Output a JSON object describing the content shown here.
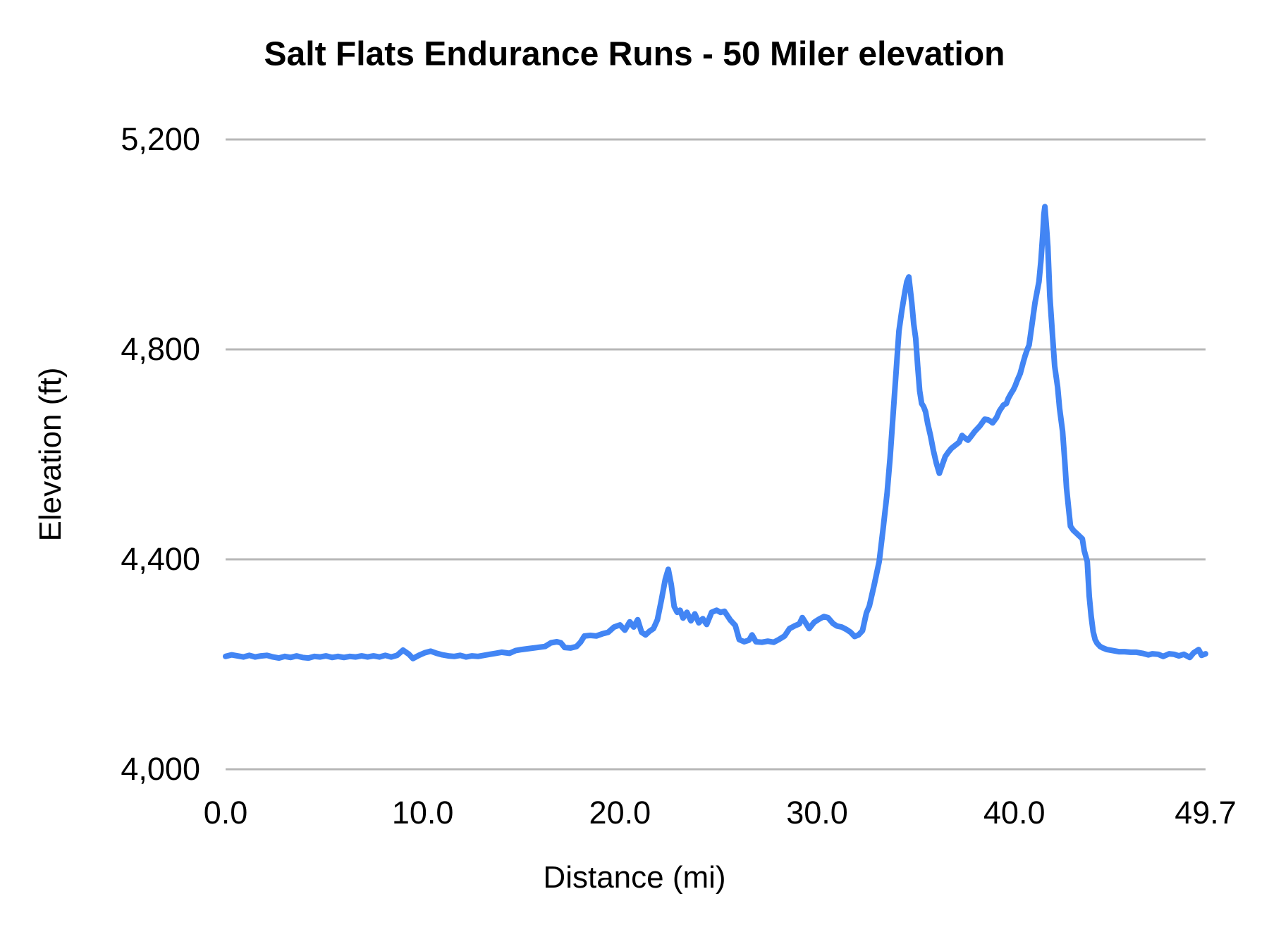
{
  "chart_data": {
    "type": "line",
    "title": "Salt Flats Endurance Runs - 50 Miler elevation",
    "xlabel": "Distance (mi)",
    "ylabel": "Elevation (ft)",
    "xlim": [
      0,
      49.7
    ],
    "ylim": [
      4000,
      5200
    ],
    "grid": "horizontal-only",
    "legend_position": "none",
    "line_color": "#4285f4",
    "gridline_color": "#b7b7b7",
    "text_color": "#000000",
    "x_ticks": [
      {
        "value": 0,
        "label": "0.0"
      },
      {
        "value": 10,
        "label": "10.0"
      },
      {
        "value": 20,
        "label": "20.0"
      },
      {
        "value": 30,
        "label": "30.0"
      },
      {
        "value": 40,
        "label": "40.0"
      },
      {
        "value": 49.7,
        "label": "49.7"
      }
    ],
    "y_ticks": [
      {
        "value": 4000,
        "label": "4,000"
      },
      {
        "value": 4400,
        "label": "4,400"
      },
      {
        "value": 4800,
        "label": "4,800"
      },
      {
        "value": 5200,
        "label": "5,200"
      }
    ],
    "series": [
      {
        "name": "Elevation",
        "points": [
          [
            0.0,
            4215
          ],
          [
            0.3,
            4218
          ],
          [
            0.6,
            4216
          ],
          [
            0.9,
            4214
          ],
          [
            1.2,
            4217
          ],
          [
            1.5,
            4214
          ],
          [
            1.8,
            4216
          ],
          [
            2.1,
            4217
          ],
          [
            2.4,
            4214
          ],
          [
            2.7,
            4212
          ],
          [
            3.0,
            4215
          ],
          [
            3.3,
            4213
          ],
          [
            3.6,
            4216
          ],
          [
            3.9,
            4213
          ],
          [
            4.2,
            4212
          ],
          [
            4.5,
            4215
          ],
          [
            4.8,
            4214
          ],
          [
            5.1,
            4216
          ],
          [
            5.4,
            4213
          ],
          [
            5.7,
            4215
          ],
          [
            6.0,
            4213
          ],
          [
            6.3,
            4215
          ],
          [
            6.6,
            4214
          ],
          [
            6.9,
            4216
          ],
          [
            7.2,
            4214
          ],
          [
            7.5,
            4216
          ],
          [
            7.8,
            4214
          ],
          [
            8.1,
            4217
          ],
          [
            8.4,
            4214
          ],
          [
            8.7,
            4217
          ],
          [
            9.0,
            4227
          ],
          [
            9.3,
            4219
          ],
          [
            9.5,
            4211
          ],
          [
            9.8,
            4217
          ],
          [
            10.1,
            4222
          ],
          [
            10.4,
            4225
          ],
          [
            10.7,
            4221
          ],
          [
            11.0,
            4218
          ],
          [
            11.3,
            4216
          ],
          [
            11.6,
            4215
          ],
          [
            11.9,
            4217
          ],
          [
            12.2,
            4214
          ],
          [
            12.5,
            4216
          ],
          [
            12.8,
            4215
          ],
          [
            13.1,
            4217
          ],
          [
            13.4,
            4219
          ],
          [
            13.7,
            4221
          ],
          [
            14.0,
            4223
          ],
          [
            14.4,
            4221
          ],
          [
            14.7,
            4226
          ],
          [
            15.0,
            4228
          ],
          [
            15.4,
            4230
          ],
          [
            15.8,
            4232
          ],
          [
            16.2,
            4234
          ],
          [
            16.5,
            4241
          ],
          [
            16.8,
            4243
          ],
          [
            17.0,
            4241
          ],
          [
            17.2,
            4232
          ],
          [
            17.5,
            4231
          ],
          [
            17.8,
            4234
          ],
          [
            18.0,
            4242
          ],
          [
            18.2,
            4254
          ],
          [
            18.5,
            4255
          ],
          [
            18.8,
            4254
          ],
          [
            19.1,
            4258
          ],
          [
            19.4,
            4261
          ],
          [
            19.7,
            4271
          ],
          [
            20.0,
            4275
          ],
          [
            20.25,
            4265
          ],
          [
            20.5,
            4281
          ],
          [
            20.7,
            4271
          ],
          [
            20.9,
            4285
          ],
          [
            21.1,
            4261
          ],
          [
            21.3,
            4256
          ],
          [
            21.5,
            4263
          ],
          [
            21.7,
            4268
          ],
          [
            21.9,
            4285
          ],
          [
            22.1,
            4322
          ],
          [
            22.3,
            4362
          ],
          [
            22.45,
            4381
          ],
          [
            22.6,
            4352
          ],
          [
            22.75,
            4310
          ],
          [
            22.9,
            4299
          ],
          [
            23.05,
            4303
          ],
          [
            23.2,
            4288
          ],
          [
            23.4,
            4299
          ],
          [
            23.6,
            4283
          ],
          [
            23.8,
            4296
          ],
          [
            24.0,
            4279
          ],
          [
            24.2,
            4287
          ],
          [
            24.4,
            4276
          ],
          [
            24.65,
            4299
          ],
          [
            24.9,
            4303
          ],
          [
            25.1,
            4299
          ],
          [
            25.3,
            4301
          ],
          [
            25.6,
            4284
          ],
          [
            25.85,
            4274
          ],
          [
            26.05,
            4247
          ],
          [
            26.3,
            4243
          ],
          [
            26.55,
            4246
          ],
          [
            26.7,
            4256
          ],
          [
            26.9,
            4243
          ],
          [
            27.2,
            4242
          ],
          [
            27.5,
            4244
          ],
          [
            27.8,
            4242
          ],
          [
            28.05,
            4247
          ],
          [
            28.35,
            4254
          ],
          [
            28.6,
            4268
          ],
          [
            28.85,
            4273
          ],
          [
            29.1,
            4277
          ],
          [
            29.25,
            4289
          ],
          [
            29.45,
            4277
          ],
          [
            29.6,
            4268
          ],
          [
            29.85,
            4280
          ],
          [
            30.1,
            4286
          ],
          [
            30.35,
            4291
          ],
          [
            30.55,
            4289
          ],
          [
            30.8,
            4278
          ],
          [
            31.0,
            4273
          ],
          [
            31.25,
            4271
          ],
          [
            31.5,
            4266
          ],
          [
            31.7,
            4261
          ],
          [
            31.9,
            4253
          ],
          [
            32.1,
            4256
          ],
          [
            32.3,
            4264
          ],
          [
            32.5,
            4298
          ],
          [
            32.65,
            4311
          ],
          [
            32.9,
            4352
          ],
          [
            33.15,
            4396
          ],
          [
            33.35,
            4459
          ],
          [
            33.55,
            4526
          ],
          [
            33.7,
            4593
          ],
          [
            33.85,
            4674
          ],
          [
            34.0,
            4754
          ],
          [
            34.15,
            4835
          ],
          [
            34.3,
            4875
          ],
          [
            34.45,
            4909
          ],
          [
            34.55,
            4929
          ],
          [
            34.65,
            4938
          ],
          [
            34.8,
            4889
          ],
          [
            34.9,
            4848
          ],
          [
            35.0,
            4821
          ],
          [
            35.1,
            4768
          ],
          [
            35.2,
            4721
          ],
          [
            35.3,
            4697
          ],
          [
            35.4,
            4691
          ],
          [
            35.5,
            4681
          ],
          [
            35.6,
            4660
          ],
          [
            35.75,
            4636
          ],
          [
            35.9,
            4607
          ],
          [
            36.05,
            4583
          ],
          [
            36.2,
            4564
          ],
          [
            36.35,
            4580
          ],
          [
            36.5,
            4596
          ],
          [
            36.65,
            4604
          ],
          [
            36.8,
            4611
          ],
          [
            37.0,
            4617
          ],
          [
            37.2,
            4623
          ],
          [
            37.35,
            4636
          ],
          [
            37.5,
            4631
          ],
          [
            37.65,
            4627
          ],
          [
            37.8,
            4634
          ],
          [
            38.0,
            4644
          ],
          [
            38.25,
            4654
          ],
          [
            38.5,
            4667
          ],
          [
            38.65,
            4666
          ],
          [
            38.8,
            4663
          ],
          [
            38.9,
            4660
          ],
          [
            39.1,
            4670
          ],
          [
            39.25,
            4683
          ],
          [
            39.45,
            4694
          ],
          [
            39.6,
            4697
          ],
          [
            39.7,
            4707
          ],
          [
            39.85,
            4717
          ],
          [
            39.95,
            4723
          ],
          [
            40.05,
            4731
          ],
          [
            40.15,
            4741
          ],
          [
            40.3,
            4754
          ],
          [
            40.45,
            4775
          ],
          [
            40.55,
            4788
          ],
          [
            40.65,
            4799
          ],
          [
            40.75,
            4808
          ],
          [
            40.85,
            4835
          ],
          [
            40.95,
            4862
          ],
          [
            41.05,
            4889
          ],
          [
            41.15,
            4909
          ],
          [
            41.25,
            4929
          ],
          [
            41.35,
            4969
          ],
          [
            41.45,
            5023
          ],
          [
            41.5,
            5057
          ],
          [
            41.55,
            5072
          ],
          [
            41.65,
            5023
          ],
          [
            41.7,
            4996
          ],
          [
            41.8,
            4902
          ],
          [
            41.95,
            4821
          ],
          [
            42.05,
            4768
          ],
          [
            42.2,
            4728
          ],
          [
            42.3,
            4687
          ],
          [
            42.45,
            4644
          ],
          [
            42.55,
            4593
          ],
          [
            42.65,
            4536
          ],
          [
            42.75,
            4499
          ],
          [
            42.85,
            4463
          ],
          [
            43.0,
            4455
          ],
          [
            43.2,
            4448
          ],
          [
            43.45,
            4439
          ],
          [
            43.55,
            4416
          ],
          [
            43.7,
            4396
          ],
          [
            43.8,
            4330
          ],
          [
            43.9,
            4291
          ],
          [
            44.0,
            4262
          ],
          [
            44.1,
            4247
          ],
          [
            44.2,
            4240
          ],
          [
            44.35,
            4234
          ],
          [
            44.5,
            4231
          ],
          [
            44.7,
            4228
          ],
          [
            45.0,
            4226
          ],
          [
            45.3,
            4224
          ],
          [
            45.6,
            4224
          ],
          [
            45.9,
            4223
          ],
          [
            46.2,
            4223
          ],
          [
            46.5,
            4221
          ],
          [
            46.8,
            4218
          ],
          [
            47.0,
            4220
          ],
          [
            47.3,
            4219
          ],
          [
            47.55,
            4215
          ],
          [
            47.85,
            4220
          ],
          [
            48.1,
            4219
          ],
          [
            48.35,
            4216
          ],
          [
            48.6,
            4219
          ],
          [
            48.9,
            4213
          ],
          [
            49.1,
            4222
          ],
          [
            49.35,
            4228
          ],
          [
            49.5,
            4217
          ],
          [
            49.7,
            4220
          ]
        ]
      }
    ]
  }
}
